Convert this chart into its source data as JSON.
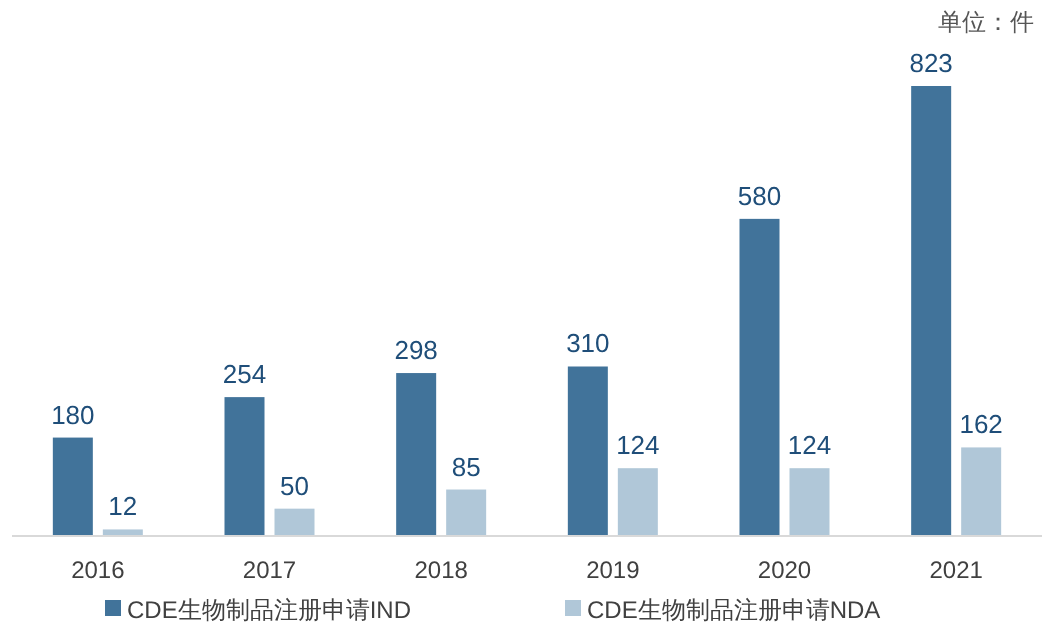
{
  "chart_data": {
    "type": "bar",
    "annotations": [
      "单位：件"
    ],
    "categories": [
      "2016",
      "2017",
      "2018",
      "2019",
      "2020",
      "2021"
    ],
    "series": [
      {
        "name": "CDE生物制品注册申请IND",
        "color": "#41739a",
        "values": [
          180,
          254,
          298,
          310,
          580,
          823
        ]
      },
      {
        "name": "CDE生物制品注册申请NDA",
        "color": "#b0c7d8",
        "values": [
          12,
          50,
          85,
          124,
          124,
          162
        ]
      }
    ],
    "data_labels": true,
    "legend": "bottom"
  }
}
